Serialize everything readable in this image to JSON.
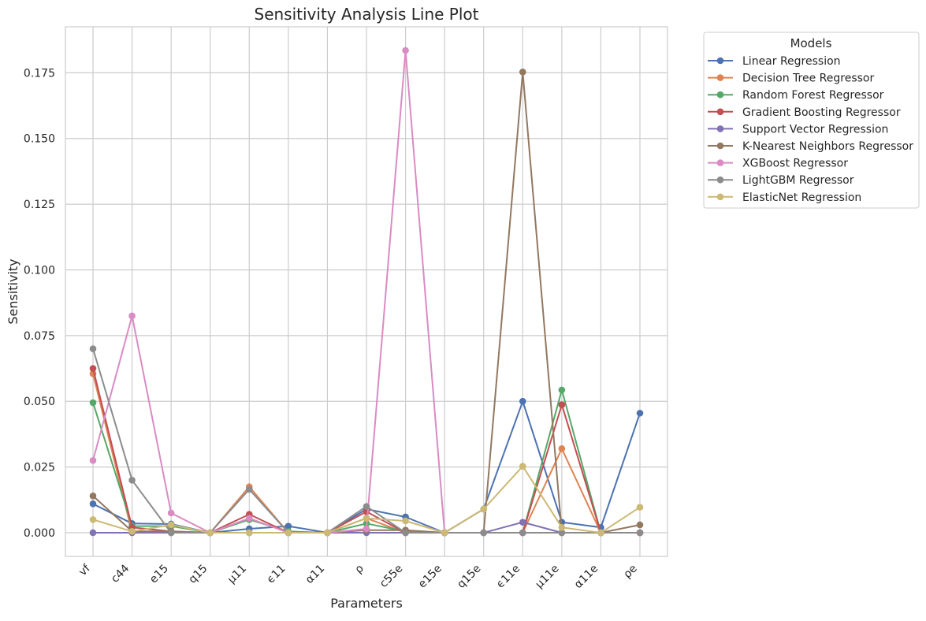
{
  "chart_data": {
    "type": "line",
    "title": "Sensitivity Analysis Line Plot",
    "xlabel": "Parameters",
    "ylabel": "Sensitivity",
    "ylim": [
      -0.009,
      0.1925
    ],
    "yticks": [
      0.0,
      0.025,
      0.05,
      0.075,
      0.1,
      0.125,
      0.15,
      0.175
    ],
    "ytick_labels": [
      "0.000",
      "0.025",
      "0.050",
      "0.075",
      "0.100",
      "0.125",
      "0.150",
      "0.175"
    ],
    "grid": true,
    "legend_title": "Models",
    "legend_position": "outside-top-right",
    "categories": [
      "vf",
      "c44",
      "e15",
      "q15",
      "μ11",
      "ϵ11",
      "α11",
      "ρ",
      "c55e",
      "e15e",
      "q15e",
      "ϵ11e",
      "μ11e",
      "α11e",
      "ρe"
    ],
    "series": [
      {
        "name": "Linear Regression",
        "color": "#4c72b0",
        "values": [
          0.011,
          0.0035,
          0.0033,
          0.0,
          0.0015,
          0.0025,
          0.0,
          0.009,
          0.006,
          0.0,
          0.009,
          0.05,
          0.004,
          0.002,
          0.0455
        ]
      },
      {
        "name": "Decision Tree Regressor",
        "color": "#dd8452",
        "values": [
          0.0605,
          0.0,
          0.0,
          0.0,
          0.0175,
          0.0,
          0.0,
          0.0055,
          0.0,
          0.0,
          0.0,
          0.0,
          0.032,
          0.0,
          0.0
        ]
      },
      {
        "name": "Random Forest Regressor",
        "color": "#55a868",
        "values": [
          0.0495,
          0.0025,
          0.0025,
          0.0,
          0.005,
          0.0005,
          0.0,
          0.0035,
          0.0005,
          0.0,
          0.0,
          0.0,
          0.0543,
          0.0,
          0.0
        ]
      },
      {
        "name": "Gradient Boosting Regressor",
        "color": "#c44e52",
        "values": [
          0.0625,
          0.002,
          0.0005,
          0.0,
          0.007,
          0.0,
          0.0,
          0.008,
          0.0,
          0.0,
          0.0,
          0.0,
          0.0487,
          0.0,
          0.0
        ]
      },
      {
        "name": "Support Vector Regression",
        "color": "#8172b3",
        "values": [
          0.0,
          0.0,
          0.0,
          0.0,
          0.0,
          0.0,
          0.0,
          0.0,
          0.0,
          0.0,
          0.0,
          0.004,
          0.0,
          0.0,
          0.0
        ]
      },
      {
        "name": "K-Nearest Neighbors Regressor",
        "color": "#937860",
        "values": [
          0.014,
          0.0005,
          0.0005,
          0.0,
          0.0,
          0.0,
          0.0,
          0.001,
          0.001,
          0.0,
          0.0,
          0.1753,
          0.0,
          0.0,
          0.003
        ]
      },
      {
        "name": "XGBoost Regressor",
        "color": "#da8bc3",
        "values": [
          0.0275,
          0.0825,
          0.0075,
          0.0,
          0.0055,
          0.0,
          0.0,
          0.0015,
          0.1835,
          0.0,
          0.0,
          0.0,
          0.0,
          0.0,
          0.0
        ]
      },
      {
        "name": "LightGBM Regressor",
        "color": "#8c8c8c",
        "values": [
          0.07,
          0.02,
          0.0,
          0.0,
          0.0165,
          0.0,
          0.0,
          0.01,
          0.0,
          0.0,
          0.0,
          0.0,
          0.0,
          0.0,
          0.0
        ]
      },
      {
        "name": "ElasticNet Regression",
        "color": "#ccb974",
        "values": [
          0.005,
          0.0005,
          0.003,
          0.0,
          0.0,
          0.0,
          0.0,
          0.0055,
          0.0045,
          0.0,
          0.009,
          0.0253,
          0.002,
          0.0,
          0.0097
        ]
      }
    ]
  }
}
